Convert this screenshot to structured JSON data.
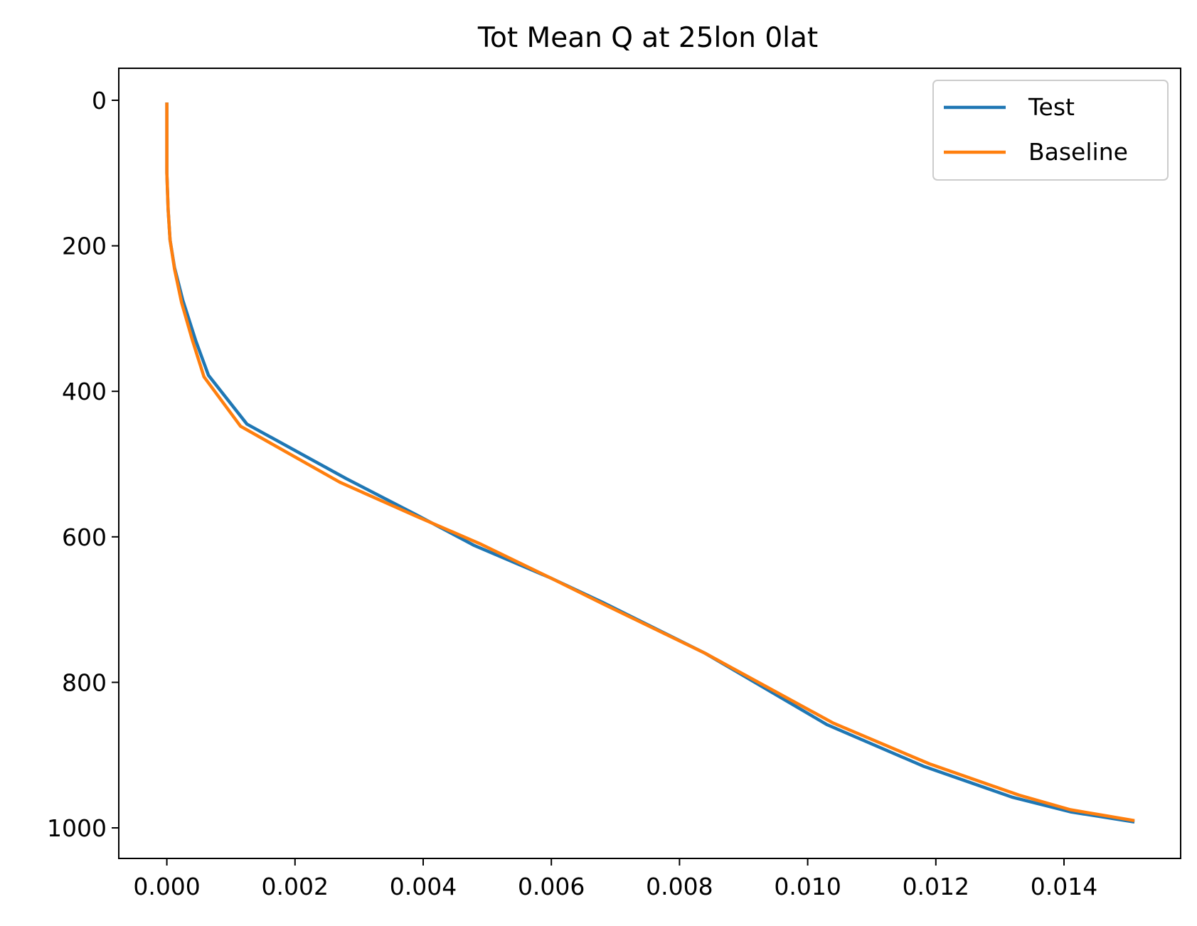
{
  "chart_data": {
    "type": "line",
    "title": "Tot Mean Q at 25lon 0lat",
    "xlabel": "",
    "ylabel": "",
    "xlim": [
      -0.00075,
      0.01582
    ],
    "ylim": [
      1042,
      -44
    ],
    "y_inverted": true,
    "x_ticks": [
      {
        "value": 0.0,
        "label": "0.000"
      },
      {
        "value": 0.002,
        "label": "0.002"
      },
      {
        "value": 0.004,
        "label": "0.004"
      },
      {
        "value": 0.006,
        "label": "0.006"
      },
      {
        "value": 0.008,
        "label": "0.008"
      },
      {
        "value": 0.01,
        "label": "0.010"
      },
      {
        "value": 0.012,
        "label": "0.012"
      },
      {
        "value": 0.014,
        "label": "0.014"
      }
    ],
    "y_ticks": [
      {
        "value": 0,
        "label": "0"
      },
      {
        "value": 200,
        "label": "200"
      },
      {
        "value": 400,
        "label": "400"
      },
      {
        "value": 600,
        "label": "600"
      },
      {
        "value": 800,
        "label": "800"
      },
      {
        "value": 1000,
        "label": "1000"
      }
    ],
    "grid": false,
    "legend": {
      "position": "top-right"
    },
    "series": [
      {
        "name": "Test",
        "color": "#1f77b4",
        "points": [
          [
            0.0,
            3
          ],
          [
            0.0,
            50
          ],
          [
            0.0,
            100
          ],
          [
            2e-05,
            150
          ],
          [
            5e-05,
            192
          ],
          [
            0.00012,
            230
          ],
          [
            0.00025,
            275
          ],
          [
            0.00045,
            330
          ],
          [
            0.00065,
            378
          ],
          [
            0.00125,
            445
          ],
          [
            0.0028,
            520
          ],
          [
            0.0039,
            570
          ],
          [
            0.0048,
            612
          ],
          [
            0.006,
            657
          ],
          [
            0.0068,
            690
          ],
          [
            0.0084,
            760
          ],
          [
            0.0103,
            858
          ],
          [
            0.0118,
            915
          ],
          [
            0.0132,
            958
          ],
          [
            0.0141,
            978
          ],
          [
            0.0151,
            992
          ]
        ]
      },
      {
        "name": "Baseline",
        "color": "#ff7f0e",
        "points": [
          [
            0.0,
            3
          ],
          [
            0.0,
            50
          ],
          [
            0.0,
            100
          ],
          [
            2e-05,
            150
          ],
          [
            5e-05,
            192
          ],
          [
            0.00012,
            232
          ],
          [
            0.00023,
            278
          ],
          [
            0.0004,
            330
          ],
          [
            0.00058,
            380
          ],
          [
            0.00115,
            448
          ],
          [
            0.0027,
            525
          ],
          [
            0.0039,
            572
          ],
          [
            0.0049,
            610
          ],
          [
            0.006,
            657
          ],
          [
            0.0068,
            692
          ],
          [
            0.0084,
            760
          ],
          [
            0.0104,
            856
          ],
          [
            0.0119,
            912
          ],
          [
            0.0133,
            955
          ],
          [
            0.0141,
            975
          ],
          [
            0.0151,
            990
          ]
        ]
      }
    ]
  }
}
